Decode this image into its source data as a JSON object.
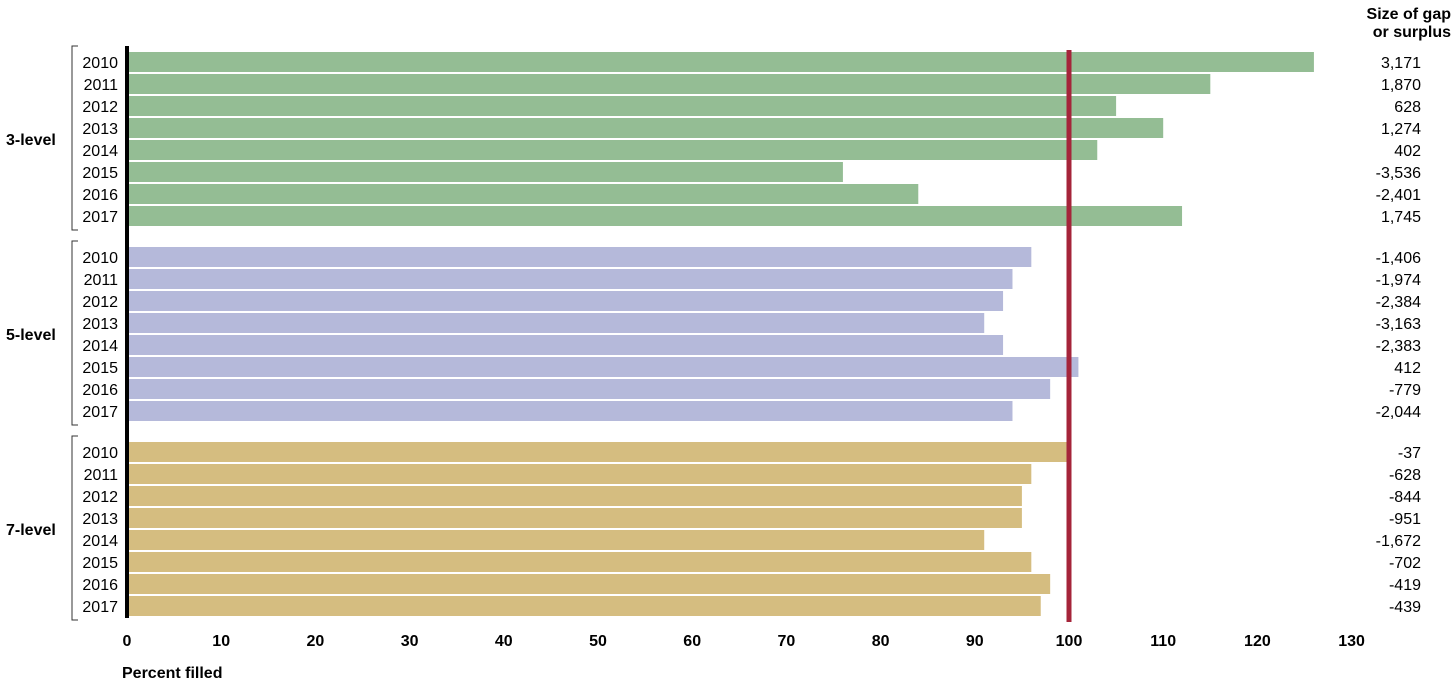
{
  "chart_data": {
    "type": "bar",
    "orientation": "horizontal",
    "xlabel": "Percent filled",
    "xlim": [
      0,
      130
    ],
    "xticks": [
      0,
      10,
      20,
      30,
      40,
      50,
      60,
      70,
      80,
      90,
      100,
      110,
      120,
      130
    ],
    "reference_line": {
      "x": 100,
      "color": "#a5243a"
    },
    "gap_column_title": [
      "Size of gap",
      "or surplus"
    ],
    "groups": [
      {
        "name": "3-level",
        "color": "#94bd94",
        "years": [
          "2010",
          "2011",
          "2012",
          "2013",
          "2014",
          "2015",
          "2016",
          "2017"
        ],
        "values": [
          126,
          115,
          105,
          110,
          103,
          76,
          84,
          112
        ],
        "gaps": [
          "3,171",
          "1,870",
          "628",
          "1,274",
          "402",
          "-3,536",
          "-2,401",
          "1,745"
        ]
      },
      {
        "name": "5-level",
        "color": "#b5b9da",
        "years": [
          "2010",
          "2011",
          "2012",
          "2013",
          "2014",
          "2015",
          "2016",
          "2017"
        ],
        "values": [
          96,
          94,
          93,
          91,
          93,
          101,
          98,
          94
        ],
        "gaps": [
          "-1,406",
          "-1,974",
          "-2,384",
          "-3,163",
          "-2,383",
          "412",
          "-779",
          "-2,044"
        ]
      },
      {
        "name": "7-level",
        "color": "#d5bd80",
        "years": [
          "2010",
          "2011",
          "2012",
          "2013",
          "2014",
          "2015",
          "2016",
          "2017"
        ],
        "values": [
          100,
          96,
          95,
          95,
          91,
          96,
          98,
          97
        ],
        "gaps": [
          "-37",
          "-628",
          "-844",
          "-951",
          "-1,672",
          "-702",
          "-419",
          "-439"
        ]
      }
    ]
  }
}
